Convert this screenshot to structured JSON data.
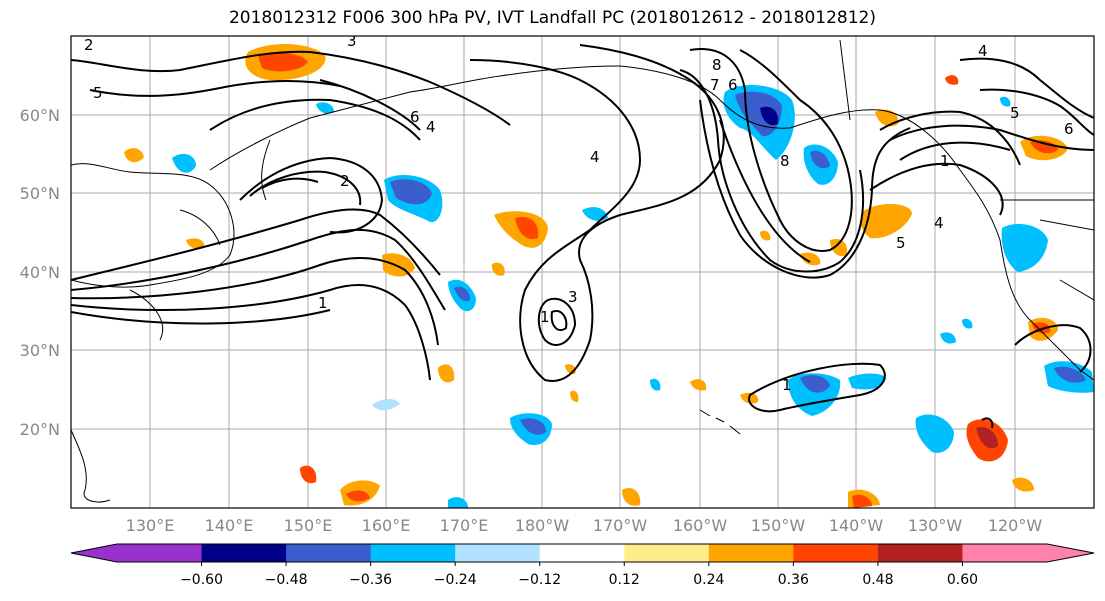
{
  "title": "2018012312 F006 300 hPa PV, IVT Landfall PC (2018012612 - 2018012812)",
  "lat_labels": [
    "60°N",
    "50°N",
    "40°N",
    "30°N",
    "20°N"
  ],
  "lon_labels": [
    "130°E",
    "140°E",
    "150°E",
    "160°E",
    "170°E",
    "180°W",
    "170°W",
    "160°W",
    "150°W",
    "140°W",
    "130°W",
    "120°W"
  ],
  "colorbar": {
    "ticks": [
      "−0.60",
      "−0.48",
      "−0.36",
      "−0.24",
      "−0.12",
      "0.12",
      "0.24",
      "0.36",
      "0.48",
      "0.60"
    ],
    "colors": [
      "#9932cc",
      "#00008b",
      "#3a5fcd",
      "#00bfff",
      "#b0e2ff",
      "#ffffff",
      "#ffec8b",
      "#ffa500",
      "#ff4500",
      "#b22222",
      "#ff82ab"
    ]
  },
  "contour_labels": [
    "3",
    "2",
    "5",
    "6",
    "4",
    "2",
    "1",
    "1",
    "3",
    "4",
    "8",
    "7",
    "6",
    "8",
    "5",
    "4",
    "6",
    "1",
    "5",
    "4",
    "1"
  ]
}
